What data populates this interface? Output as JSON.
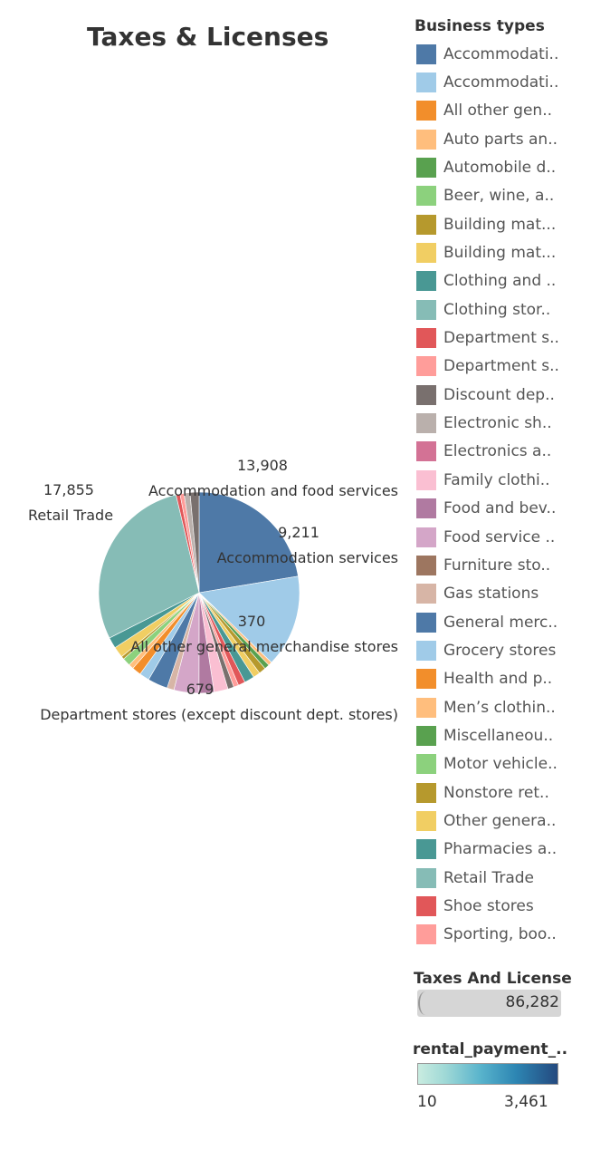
{
  "chart_data": {
    "type": "pie",
    "title": "Taxes & Licenses",
    "legend_title": "Business types",
    "legend_placement": "right",
    "categories": [
      "Accommodati..",
      "Accommodati..",
      "All other gen..",
      "Auto parts an..",
      "Automobile d..",
      "Beer, wine, a..",
      "Building mat...",
      "Building mat...",
      "Clothing and ..",
      "Clothing stor..",
      "Department s..",
      "Department s..",
      "Discount dep..",
      "Electronic sh..",
      "Electronics a..",
      "Family clothi..",
      "Food and bev..",
      "Food service ..",
      "Furniture sto..",
      "Gas stations",
      "General merc..",
      "Grocery stores",
      "Health and p..",
      "Men’s clothin..",
      "Miscellaneou..",
      "Motor vehicle..",
      "Nonstore ret..",
      "Other genera..",
      "Pharmacies a..",
      "Retail Trade",
      "Shoe stores",
      "Sporting, boo.."
    ],
    "colors": [
      "#4e79a7",
      "#a0cbe8",
      "#f28e2b",
      "#ffbe7d",
      "#59a14f",
      "#8cd17d",
      "#b6992d",
      "#f1ce63",
      "#499894",
      "#86bcb6",
      "#e15759",
      "#ff9d9a",
      "#79706e",
      "#bab0ac",
      "#d37295",
      "#fabfd2",
      "#b07aa1",
      "#d4a6c8",
      "#9d7660",
      "#d7b5a6"
    ],
    "slices": [
      {
        "category": "Accommodation and food services",
        "value": 13908,
        "color": "#4e79a7"
      },
      {
        "category": "Accommodation services",
        "value": 9211,
        "color": "#a0cbe8"
      },
      {
        "category": "",
        "value": 370,
        "color": "#ffbe7d"
      },
      {
        "category": "",
        "value": 500,
        "color": "#59a14f"
      },
      {
        "category": "",
        "value": 700,
        "color": "#b6992d"
      },
      {
        "category": "",
        "value": 700,
        "color": "#f1ce63"
      },
      {
        "category": "",
        "value": 1000,
        "color": "#499894"
      },
      {
        "category": "",
        "value": 700,
        "color": "#e15759"
      },
      {
        "category": "",
        "value": 500,
        "color": "#ff9d9a"
      },
      {
        "category": "",
        "value": 600,
        "color": "#79706e"
      },
      {
        "category": "",
        "value": 1400,
        "color": "#fabfd2"
      },
      {
        "category": "",
        "value": 1500,
        "color": "#b07aa1"
      },
      {
        "category": "",
        "value": 2500,
        "color": "#d4a6c8"
      },
      {
        "category": "",
        "value": 700,
        "color": "#d7b5a6"
      },
      {
        "category": "",
        "value": 2000,
        "color": "#4e79a7"
      },
      {
        "category": "",
        "value": 1000,
        "color": "#a0cbe8"
      },
      {
        "category": "",
        "value": 900,
        "color": "#f28e2b"
      },
      {
        "category": "",
        "value": 500,
        "color": "#ffbe7d"
      },
      {
        "category": "",
        "value": 800,
        "color": "#8cd17d"
      },
      {
        "category": "",
        "value": 300,
        "color": "#b6992d"
      },
      {
        "category": "",
        "value": 1100,
        "color": "#f1ce63"
      },
      {
        "category": "",
        "value": 1100,
        "color": "#499894"
      },
      {
        "category": "Retail Trade",
        "value": 17855,
        "color": "#86bcb6"
      },
      {
        "category": "",
        "value": 400,
        "color": "#e15759"
      },
      {
        "category": "",
        "value": 400,
        "color": "#ff9d9a"
      },
      {
        "category": "",
        "value": 600,
        "color": "#bab0ac"
      },
      {
        "category": "",
        "value": 900,
        "color": "#79706e"
      }
    ],
    "annotations": [
      {
        "value_text": "13,908",
        "category_text": "Accommodation and food services"
      },
      {
        "value_text": "9,211",
        "category_text": "Accommodation services"
      },
      {
        "value_text": "370",
        "category_text": "All other general merchandise stores"
      },
      {
        "value_text": "679",
        "category_text": "Department stores (except discount dept. stores)"
      },
      {
        "value_text": "17,855",
        "category_text": "Retail Trade"
      }
    ],
    "size_legend": {
      "title": "Taxes And License",
      "max_value": "86,282"
    },
    "color_legend": {
      "title": "rental_payment_..",
      "min": "10",
      "max": "3,461",
      "color_low": "#c9ece0",
      "color_high": "#24497f"
    }
  }
}
